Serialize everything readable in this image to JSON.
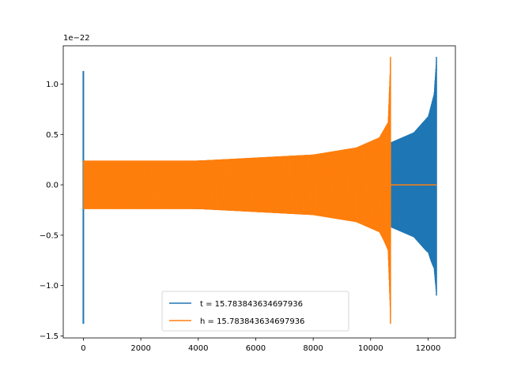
{
  "chart_data": {
    "type": "line",
    "title": "",
    "xlabel": "",
    "ylabel": "",
    "offset_text": "1e−22",
    "xlim": [
      -700,
      12950
    ],
    "ylim": [
      -1.52,
      1.38
    ],
    "xticks": [
      0,
      2000,
      4000,
      6000,
      8000,
      10000,
      12000
    ],
    "xtick_labels": [
      "0",
      "2000",
      "4000",
      "6000",
      "8000",
      "10000",
      "12000"
    ],
    "yticks": [
      -1.5,
      -1.0,
      -0.5,
      0.0,
      0.5,
      1.0
    ],
    "ytick_labels": [
      "−1.5",
      "−1.0",
      "−0.5",
      "0.0",
      "0.5",
      "1.0"
    ],
    "grid": false,
    "legend_position": "lower center",
    "series": [
      {
        "name": "t = 15.783843634697936",
        "color": "#1f77b4",
        "signal": "chirp",
        "x_start": 0,
        "merger_x": 12290,
        "end_x": 12290,
        "initial_spike": {
          "x": 0,
          "max": 1.13,
          "min": -1.38
        },
        "envelope_points": [
          [
            0,
            0.22
          ],
          [
            4000,
            0.24
          ],
          [
            8000,
            0.29
          ],
          [
            10000,
            0.37
          ],
          [
            10690,
            0.42
          ],
          [
            11500,
            0.52
          ],
          [
            12000,
            0.68
          ],
          [
            12200,
            0.9
          ],
          [
            12290,
            1.27
          ]
        ],
        "peak_min": -1.1
      },
      {
        "name": "h = 15.783843634697936",
        "color": "#ff7f0e",
        "signal": "chirp_then_flat",
        "x_start": 0,
        "merger_x": 10690,
        "end_x": 12290,
        "flat_value": 0.0,
        "envelope_points": [
          [
            0,
            0.24
          ],
          [
            4000,
            0.24
          ],
          [
            8000,
            0.3
          ],
          [
            9500,
            0.37
          ],
          [
            10300,
            0.47
          ],
          [
            10600,
            0.62
          ],
          [
            10690,
            1.27
          ]
        ],
        "peak_min": -1.38
      }
    ]
  }
}
